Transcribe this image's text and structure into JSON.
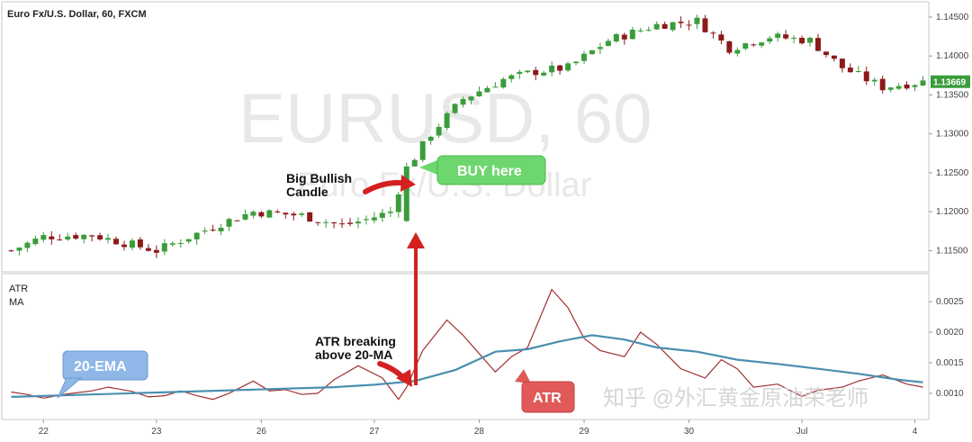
{
  "chart_data": [
    {
      "type": "candlestick",
      "title": "Euro Fx/U.S. Dollar, 60, FXCM",
      "watermark_main": "EURUSD, 60",
      "watermark_sub": "Euro Fx/U.S. Dollar",
      "y_ticks": [
        "1.14500",
        "1.14000",
        "1.13500",
        "1.13000",
        "1.12500",
        "1.12000",
        "1.11500"
      ],
      "y_tick_values": [
        1.145,
        1.14,
        1.135,
        1.13,
        1.125,
        1.12,
        1.115
      ],
      "ylim": [
        1.1125,
        1.1465
      ],
      "last_price": "1.13669",
      "last_price_value": 1.1367,
      "x_ticks": [
        "22",
        "23",
        "26",
        "27",
        "28",
        "29",
        "30",
        "Jul",
        "4"
      ],
      "x_tick_index": [
        4,
        18,
        31,
        45,
        58,
        71,
        84,
        98,
        112
      ],
      "bar_count": 114,
      "close_path": [
        [
          0,
          1.115
        ],
        [
          4,
          1.1168
        ],
        [
          10,
          1.117
        ],
        [
          18,
          1.115
        ],
        [
          26,
          1.1185
        ],
        [
          30,
          1.12
        ],
        [
          36,
          1.1195
        ],
        [
          41,
          1.1182
        ],
        [
          44,
          1.119
        ],
        [
          47,
          1.12
        ],
        [
          49,
          1.1255
        ],
        [
          52,
          1.13
        ],
        [
          56,
          1.1345
        ],
        [
          61,
          1.137
        ],
        [
          65,
          1.138
        ],
        [
          69,
          1.1385
        ],
        [
          74,
          1.142
        ],
        [
          80,
          1.144
        ],
        [
          85,
          1.1445
        ],
        [
          89,
          1.141
        ],
        [
          94,
          1.1425
        ],
        [
          99,
          1.142
        ],
        [
          103,
          1.1385
        ],
        [
          108,
          1.136
        ],
        [
          113,
          1.1367
        ]
      ],
      "breakout_bar": 49,
      "colors": {
        "up": "#3a9c3a",
        "down": "#8b1a1a",
        "price_tag": "#3a9c3a"
      }
    },
    {
      "type": "line",
      "panel_labels": [
        "ATR",
        "MA"
      ],
      "y_ticks": [
        "0.0025",
        "0.0020",
        "0.0015",
        "0.0010"
      ],
      "y_tick_values": [
        0.0025,
        0.002,
        0.0015,
        0.001
      ],
      "ylim": [
        0.0006,
        0.0029
      ],
      "series": [
        {
          "name": "ATR",
          "color": "#a03030",
          "values": [
            [
              0,
              0.00102
            ],
            [
              2,
              0.00098
            ],
            [
              4,
              0.00092
            ],
            [
              7,
              0.00099
            ],
            [
              10,
              0.00104
            ],
            [
              12,
              0.0011
            ],
            [
              15,
              0.00103
            ],
            [
              17,
              0.00094
            ],
            [
              19,
              0.00096
            ],
            [
              21,
              0.00104
            ],
            [
              23,
              0.00096
            ],
            [
              25,
              0.0009
            ],
            [
              27,
              0.001
            ],
            [
              30,
              0.0012
            ],
            [
              32,
              0.00104
            ],
            [
              34,
              0.00106
            ],
            [
              36,
              0.00098
            ],
            [
              38,
              0.001
            ],
            [
              40,
              0.00122
            ],
            [
              43,
              0.00145
            ],
            [
              46,
              0.00125
            ],
            [
              48,
              0.0009
            ],
            [
              49,
              0.0011
            ],
            [
              51,
              0.0017
            ],
            [
              54,
              0.0022
            ],
            [
              56,
              0.00195
            ],
            [
              58,
              0.00165
            ],
            [
              60,
              0.00135
            ],
            [
              62,
              0.0016
            ],
            [
              64,
              0.00175
            ],
            [
              67,
              0.0027
            ],
            [
              69,
              0.0024
            ],
            [
              71,
              0.0019
            ],
            [
              73,
              0.0017
            ],
            [
              76,
              0.0016
            ],
            [
              78,
              0.002
            ],
            [
              80,
              0.0018
            ],
            [
              83,
              0.0014
            ],
            [
              86,
              0.00125
            ],
            [
              88,
              0.00155
            ],
            [
              90,
              0.0014
            ],
            [
              92,
              0.0011
            ],
            [
              95,
              0.00115
            ],
            [
              98,
              0.00095
            ],
            [
              100,
              0.00105
            ],
            [
              103,
              0.0011
            ],
            [
              105,
              0.0012
            ],
            [
              108,
              0.0013
            ],
            [
              111,
              0.00115
            ],
            [
              113,
              0.0011
            ]
          ]
        },
        {
          "name": "20-EMA",
          "color": "#4a8fb0",
          "values": [
            [
              0,
              0.00094
            ],
            [
              10,
              0.00098
            ],
            [
              20,
              0.00102
            ],
            [
              30,
              0.00106
            ],
            [
              40,
              0.0011
            ],
            [
              45,
              0.00114
            ],
            [
              50,
              0.0012
            ],
            [
              55,
              0.00138
            ],
            [
              60,
              0.00168
            ],
            [
              64,
              0.00172
            ],
            [
              68,
              0.00185
            ],
            [
              72,
              0.00195
            ],
            [
              76,
              0.00188
            ],
            [
              80,
              0.00175
            ],
            [
              85,
              0.00168
            ],
            [
              90,
              0.00155
            ],
            [
              95,
              0.00148
            ],
            [
              100,
              0.0014
            ],
            [
              105,
              0.00132
            ],
            [
              110,
              0.00122
            ],
            [
              113,
              0.00118
            ]
          ]
        }
      ]
    }
  ],
  "annotations": {
    "big_bullish_candle": "Big Bullish Candle",
    "big_bullish_line1": "Big Bullish",
    "big_bullish_line2": "Candle",
    "buy_here": "BUY here",
    "atr_breaking_line1": "ATR breaking",
    "atr_breaking_line2": "above 20-MA",
    "ema_label": "20-EMA",
    "atr_label": "ATR",
    "corner_watermark": "知乎 @外汇黄金原油荣老师",
    "colors": {
      "ema_box": "#8fb8e8",
      "atr_box": "#e05a5a",
      "buy_box": "#6ed66e",
      "arrow": "#d42020"
    }
  }
}
